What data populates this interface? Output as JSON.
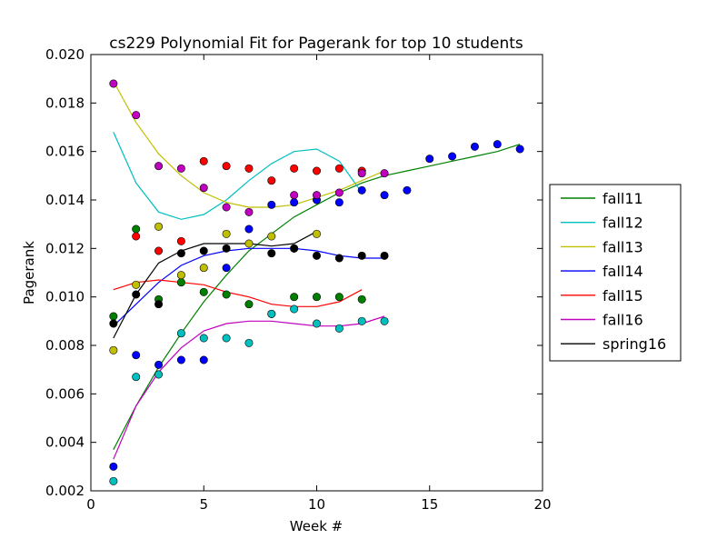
{
  "chart_data": {
    "type": "scatter",
    "title": "cs229 Polynomial Fit for Pagerank for top 10 students",
    "xlabel": "Week #",
    "ylabel": "Pagerank",
    "xlim": [
      0,
      20
    ],
    "ylim": [
      0.002,
      0.02
    ],
    "x_ticks": [
      "0",
      "5",
      "10",
      "15",
      "20"
    ],
    "y_ticks": [
      "0.002",
      "0.004",
      "0.006",
      "0.008",
      "0.010",
      "0.012",
      "0.014",
      "0.016",
      "0.018",
      "0.020"
    ],
    "legend_position": "right, outside plot",
    "grid": false,
    "series": [
      {
        "name": "fall11",
        "color": "#008000",
        "points": [
          [
            1,
            0.0092
          ],
          [
            2,
            0.0128
          ],
          [
            3,
            0.0099
          ],
          [
            4,
            0.0106
          ],
          [
            5,
            0.0102
          ],
          [
            6,
            0.0101
          ],
          [
            7,
            0.0097
          ],
          [
            8,
            0.0093
          ],
          [
            9,
            0.01
          ],
          [
            10,
            0.01
          ],
          [
            11,
            0.01
          ],
          [
            12,
            0.0099
          ]
        ],
        "fit": [
          [
            1,
            0.0037
          ],
          [
            2,
            0.0055
          ],
          [
            3,
            0.0071
          ],
          [
            4,
            0.0085
          ],
          [
            5,
            0.0098
          ],
          [
            6,
            0.0109
          ],
          [
            7,
            0.0119
          ],
          [
            8,
            0.0126
          ],
          [
            9,
            0.0133
          ],
          [
            10,
            0.0138
          ],
          [
            11,
            0.0143
          ],
          [
            12,
            0.0147
          ],
          [
            13,
            0.015
          ],
          [
            14,
            0.0152
          ],
          [
            15,
            0.0154
          ],
          [
            16,
            0.0156
          ],
          [
            17,
            0.0158
          ],
          [
            18,
            0.016
          ],
          [
            19,
            0.0163
          ]
        ]
      },
      {
        "name": "fall12",
        "color": "#00BFBF",
        "points": [
          [
            1,
            0.0024
          ],
          [
            2,
            0.0067
          ],
          [
            3,
            0.0068
          ],
          [
            4,
            0.0085
          ],
          [
            5,
            0.0083
          ],
          [
            6,
            0.0083
          ],
          [
            7,
            0.0081
          ],
          [
            8,
            0.0093
          ],
          [
            9,
            0.0095
          ],
          [
            10,
            0.0089
          ],
          [
            11,
            0.0087
          ],
          [
            12,
            0.009
          ],
          [
            13,
            0.009
          ]
        ],
        "fit": [
          [
            1,
            0.0168
          ],
          [
            2,
            0.0147
          ],
          [
            3,
            0.0135
          ],
          [
            4,
            0.0132
          ],
          [
            5,
            0.0134
          ],
          [
            6,
            0.014
          ],
          [
            7,
            0.0148
          ],
          [
            8,
            0.0155
          ],
          [
            9,
            0.016
          ],
          [
            10,
            0.0161
          ],
          [
            11,
            0.0156
          ],
          [
            12,
            0.0143
          ]
        ]
      },
      {
        "name": "fall13",
        "color": "#BFBF00",
        "points": [
          [
            1,
            0.0078
          ],
          [
            2,
            0.0105
          ],
          [
            3,
            0.0129
          ],
          [
            4,
            0.0109
          ],
          [
            5,
            0.0112
          ],
          [
            6,
            0.0126
          ],
          [
            7,
            0.0122
          ],
          [
            8,
            0.0125
          ],
          [
            9,
            0.012
          ],
          [
            10,
            0.0126
          ]
        ],
        "fit": [
          [
            1,
            0.0189
          ],
          [
            2,
            0.0172
          ],
          [
            3,
            0.0159
          ],
          [
            4,
            0.015
          ],
          [
            5,
            0.0143
          ],
          [
            6,
            0.0139
          ],
          [
            7,
            0.0137
          ],
          [
            8,
            0.0137
          ],
          [
            9,
            0.0138
          ],
          [
            10,
            0.0141
          ],
          [
            11,
            0.0144
          ],
          [
            12,
            0.0148
          ],
          [
            13,
            0.0152
          ]
        ]
      },
      {
        "name": "fall14",
        "color": "#0000FF",
        "points": [
          [
            1,
            0.003
          ],
          [
            2,
            0.0076
          ],
          [
            3,
            0.0072
          ],
          [
            4,
            0.0074
          ],
          [
            5,
            0.0074
          ],
          [
            6,
            0.0112
          ],
          [
            7,
            0.0128
          ],
          [
            8,
            0.0138
          ],
          [
            9,
            0.0139
          ],
          [
            10,
            0.014
          ],
          [
            11,
            0.0139
          ],
          [
            12,
            0.0144
          ],
          [
            13,
            0.0142
          ],
          [
            14,
            0.0144
          ],
          [
            15,
            0.0157
          ],
          [
            16,
            0.0158
          ],
          [
            17,
            0.0162
          ],
          [
            18,
            0.0163
          ],
          [
            19,
            0.0161
          ]
        ],
        "fit": [
          [
            1,
            0.0088
          ],
          [
            2,
            0.0097
          ],
          [
            3,
            0.0106
          ],
          [
            4,
            0.0113
          ],
          [
            5,
            0.0117
          ],
          [
            6,
            0.0119
          ],
          [
            7,
            0.012
          ],
          [
            8,
            0.012
          ],
          [
            9,
            0.012
          ],
          [
            10,
            0.0119
          ],
          [
            11,
            0.0117
          ],
          [
            12,
            0.0116
          ],
          [
            13,
            0.0116
          ]
        ]
      },
      {
        "name": "fall15",
        "color": "#FF0000",
        "points": [
          [
            2,
            0.0125
          ],
          [
            3,
            0.0119
          ],
          [
            4,
            0.0123
          ],
          [
            5,
            0.0156
          ],
          [
            6,
            0.0154
          ],
          [
            7,
            0.0153
          ],
          [
            8,
            0.0148
          ],
          [
            9,
            0.0153
          ],
          [
            10,
            0.0152
          ],
          [
            11,
            0.0153
          ],
          [
            12,
            0.0152
          ]
        ],
        "fit": [
          [
            1,
            0.0103
          ],
          [
            2,
            0.0106
          ],
          [
            3,
            0.0107
          ],
          [
            4,
            0.0106
          ],
          [
            5,
            0.0105
          ],
          [
            6,
            0.0102
          ],
          [
            7,
            0.01
          ],
          [
            8,
            0.0097
          ],
          [
            9,
            0.0096
          ],
          [
            10,
            0.0096
          ],
          [
            11,
            0.0098
          ],
          [
            12,
            0.0103
          ]
        ]
      },
      {
        "name": "fall16",
        "color": "#BF00BF",
        "points": [
          [
            1,
            0.0188
          ],
          [
            2,
            0.0175
          ],
          [
            3,
            0.0154
          ],
          [
            4,
            0.0153
          ],
          [
            5,
            0.0145
          ],
          [
            6,
            0.0137
          ],
          [
            7,
            0.0135
          ],
          [
            9,
            0.0142
          ],
          [
            10,
            0.0142
          ],
          [
            11,
            0.0143
          ],
          [
            12,
            0.0151
          ],
          [
            13,
            0.0151
          ]
        ],
        "fit": [
          [
            1,
            0.0033
          ],
          [
            2,
            0.0055
          ],
          [
            3,
            0.0069
          ],
          [
            4,
            0.0079
          ],
          [
            5,
            0.0086
          ],
          [
            6,
            0.0089
          ],
          [
            7,
            0.009
          ],
          [
            8,
            0.009
          ],
          [
            9,
            0.0089
          ],
          [
            10,
            0.0088
          ],
          [
            11,
            0.0088
          ],
          [
            12,
            0.0089
          ],
          [
            13,
            0.0092
          ]
        ]
      },
      {
        "name": "spring16",
        "color": "#000000",
        "points": [
          [
            1,
            0.0089
          ],
          [
            2,
            0.0101
          ],
          [
            3,
            0.0097
          ],
          [
            4,
            0.0118
          ],
          [
            5,
            0.0119
          ],
          [
            6,
            0.012
          ],
          [
            8,
            0.0118
          ],
          [
            9,
            0.012
          ],
          [
            10,
            0.0117
          ],
          [
            11,
            0.0116
          ],
          [
            12,
            0.0117
          ],
          [
            13,
            0.0117
          ]
        ],
        "fit": [
          [
            1,
            0.0083
          ],
          [
            2,
            0.0101
          ],
          [
            3,
            0.0114
          ],
          [
            4,
            0.0119
          ],
          [
            5,
            0.0122
          ],
          [
            6,
            0.0122
          ],
          [
            7,
            0.0122
          ],
          [
            8,
            0.0121
          ],
          [
            9,
            0.0122
          ],
          [
            10,
            0.0127
          ]
        ]
      }
    ]
  }
}
